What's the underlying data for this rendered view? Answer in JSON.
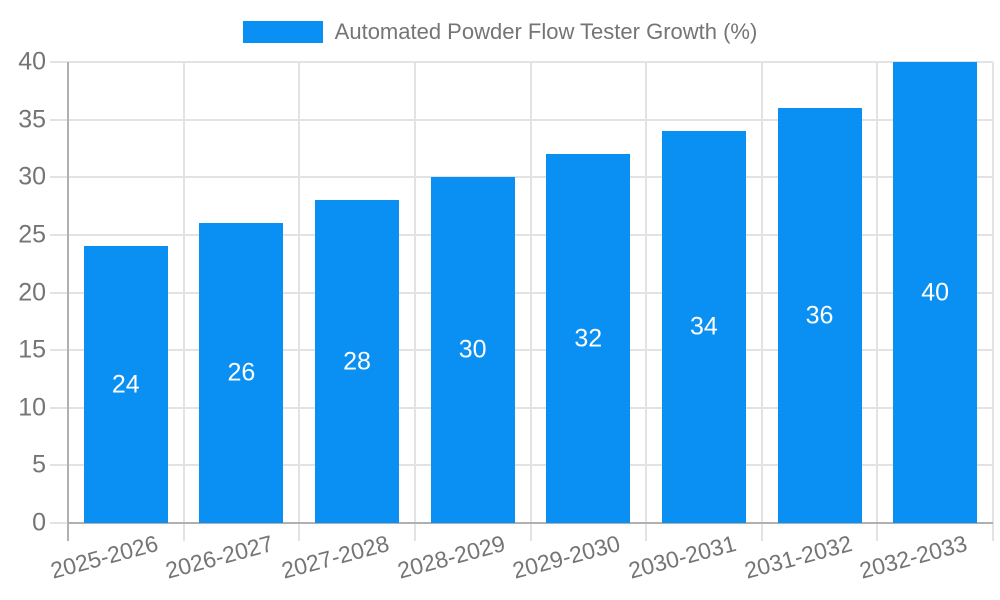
{
  "legend": {
    "label": "Automated Powder Flow Tester Growth (%)"
  },
  "chart_data": {
    "type": "bar",
    "title": "",
    "series_name": "Automated Powder Flow Tester Growth (%)",
    "categories": [
      "2025-2026",
      "2026-2027",
      "2027-2028",
      "2028-2029",
      "2029-2030",
      "2030-2031",
      "2031-2032",
      "2032-2033"
    ],
    "values": [
      24,
      26,
      28,
      30,
      32,
      34,
      36,
      40
    ],
    "bar_labels": [
      "24",
      "26",
      "28",
      "30",
      "32",
      "34",
      "36",
      "40"
    ],
    "ylim": [
      0,
      40
    ],
    "ytick_step": 5,
    "yticks": [
      0,
      5,
      10,
      15,
      20,
      25,
      30,
      35,
      40
    ],
    "xlabel": "",
    "ylabel": "",
    "grid": true,
    "legend_position": "top",
    "x_label_rotation_deg": -15,
    "colors": {
      "bar": "#0a90f2",
      "bar_label": "#ffffff",
      "axis_text": "#757575",
      "axis_line": "#b0b0b0",
      "grid": "#e3e3e3"
    }
  }
}
